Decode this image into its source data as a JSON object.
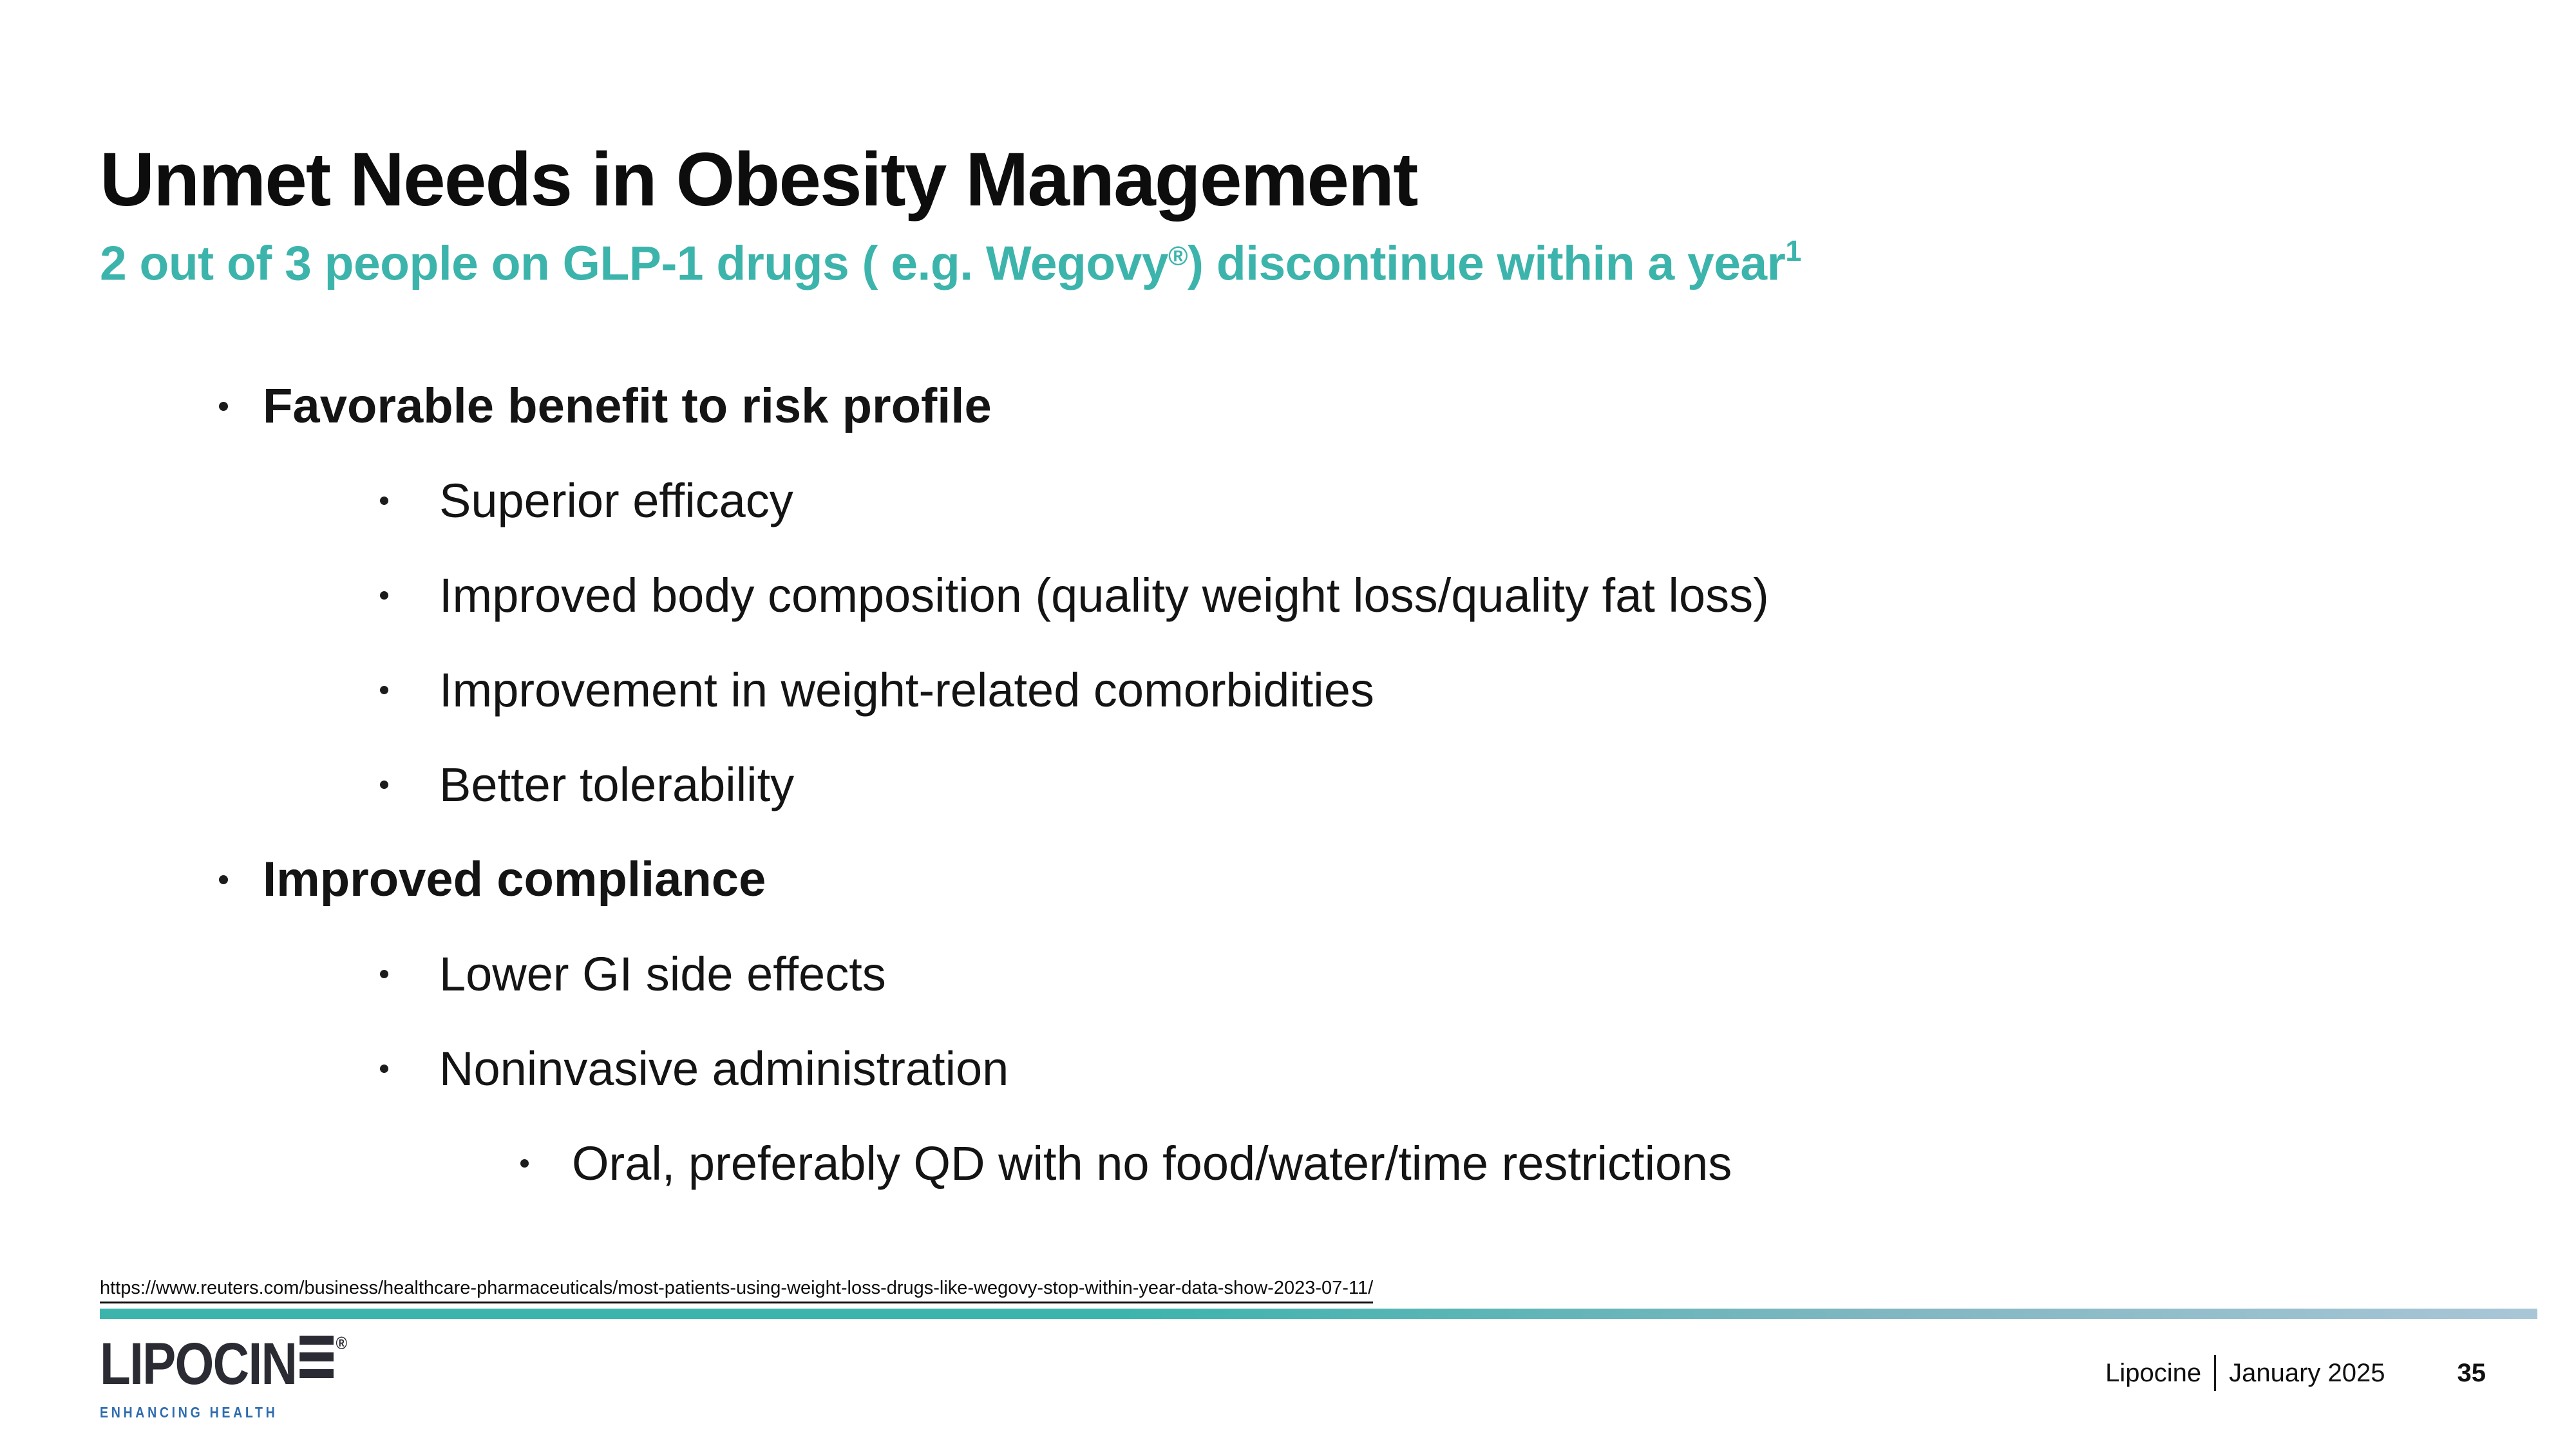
{
  "slide": {
    "title": "Unmet Needs in Obesity Management",
    "subtitle": {
      "before_reg": "2 out of 3 people on GLP-1 drugs ( e.g. Wegovy",
      "reg_mark": "®",
      "after_reg": ") discontinue within a year",
      "footnote_marker": "1"
    },
    "bullets": {
      "items": [
        {
          "level": 1,
          "bold": true,
          "text": "Favorable benefit to risk profile"
        },
        {
          "level": 2,
          "bold": false,
          "text": "Superior efficacy"
        },
        {
          "level": 2,
          "bold": false,
          "text": "Improved body composition (quality weight loss/quality fat loss)"
        },
        {
          "level": 2,
          "bold": false,
          "text": "Improvement in weight-related comorbidities"
        },
        {
          "level": 2,
          "bold": false,
          "text": "Better tolerability"
        },
        {
          "level": 1,
          "bold": true,
          "text": "Improved compliance"
        },
        {
          "level": 2,
          "bold": false,
          "text": "Lower GI side effects"
        },
        {
          "level": 2,
          "bold": false,
          "text": "Noninvasive administration"
        },
        {
          "level": 3,
          "bold": false,
          "text": "Oral, preferably QD with no food/water/time restrictions"
        }
      ]
    }
  },
  "footer": {
    "source_url": "https://www.reuters.com/business/healthcare-pharmaceuticals/most-patients-using-weight-loss-drugs-like-wegovy-stop-within-year-data-show-2023-07-11/",
    "logo": {
      "word": "LIPOCIN",
      "reg_mark": "®",
      "tagline": "ENHANCING HEALTH"
    },
    "company": "Lipocine",
    "date": "January 2025",
    "page_number": "35"
  },
  "colors": {
    "accent_teal": "#3CB4AC",
    "bar_end": "#A9C6D7",
    "logo_dark": "#2B2B33",
    "logo_blue": "#2E6CB0",
    "text_color": "#111111"
  }
}
